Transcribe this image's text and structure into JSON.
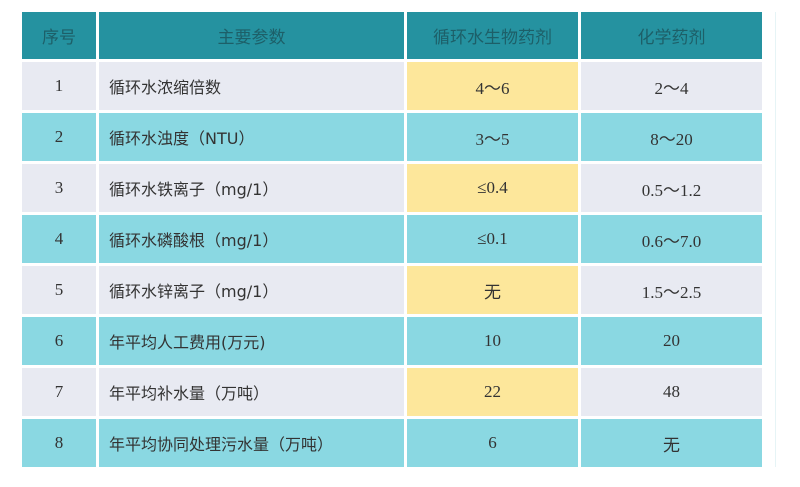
{
  "colors": {
    "header": "#2592a0",
    "row_odd": "#e8eaf2",
    "row_even": "#8ad8e2",
    "highlight": "#fde79b"
  },
  "headers": [
    "序号",
    "主要参数",
    "循环水生物药剂",
    "化学药剂"
  ],
  "rows": [
    {
      "no": "1",
      "param": "循环水浓缩倍数",
      "bio": "4～6",
      "chem": "2～4",
      "bio_highlight": true
    },
    {
      "no": "2",
      "param": "循环水浊度（NTU）",
      "bio": "3～5",
      "chem": "8～20",
      "bio_highlight": false
    },
    {
      "no": "3",
      "param": "循环水铁离子（mg/1）",
      "bio": "≤0.4",
      "chem": "0.5～1.2",
      "bio_highlight": true
    },
    {
      "no": "4",
      "param": "循环水磷酸根（mg/1）",
      "bio": "≤0.1",
      "chem": "0.6～7.0",
      "bio_highlight": false
    },
    {
      "no": "5",
      "param": "循环水锌离子（mg/1）",
      "bio": "无",
      "chem": "1.5～2.5",
      "bio_highlight": true
    },
    {
      "no": "6",
      "param": "年平均人工费用(万元)",
      "bio": "10",
      "chem": "20",
      "bio_highlight": false
    },
    {
      "no": "7",
      "param": "年平均补水量（万吨）",
      "bio": "22",
      "chem": "48",
      "bio_highlight": true
    },
    {
      "no": "8",
      "param": "年平均协同处理污水量（万吨）",
      "bio": "6",
      "chem": "无",
      "bio_highlight": false
    }
  ]
}
